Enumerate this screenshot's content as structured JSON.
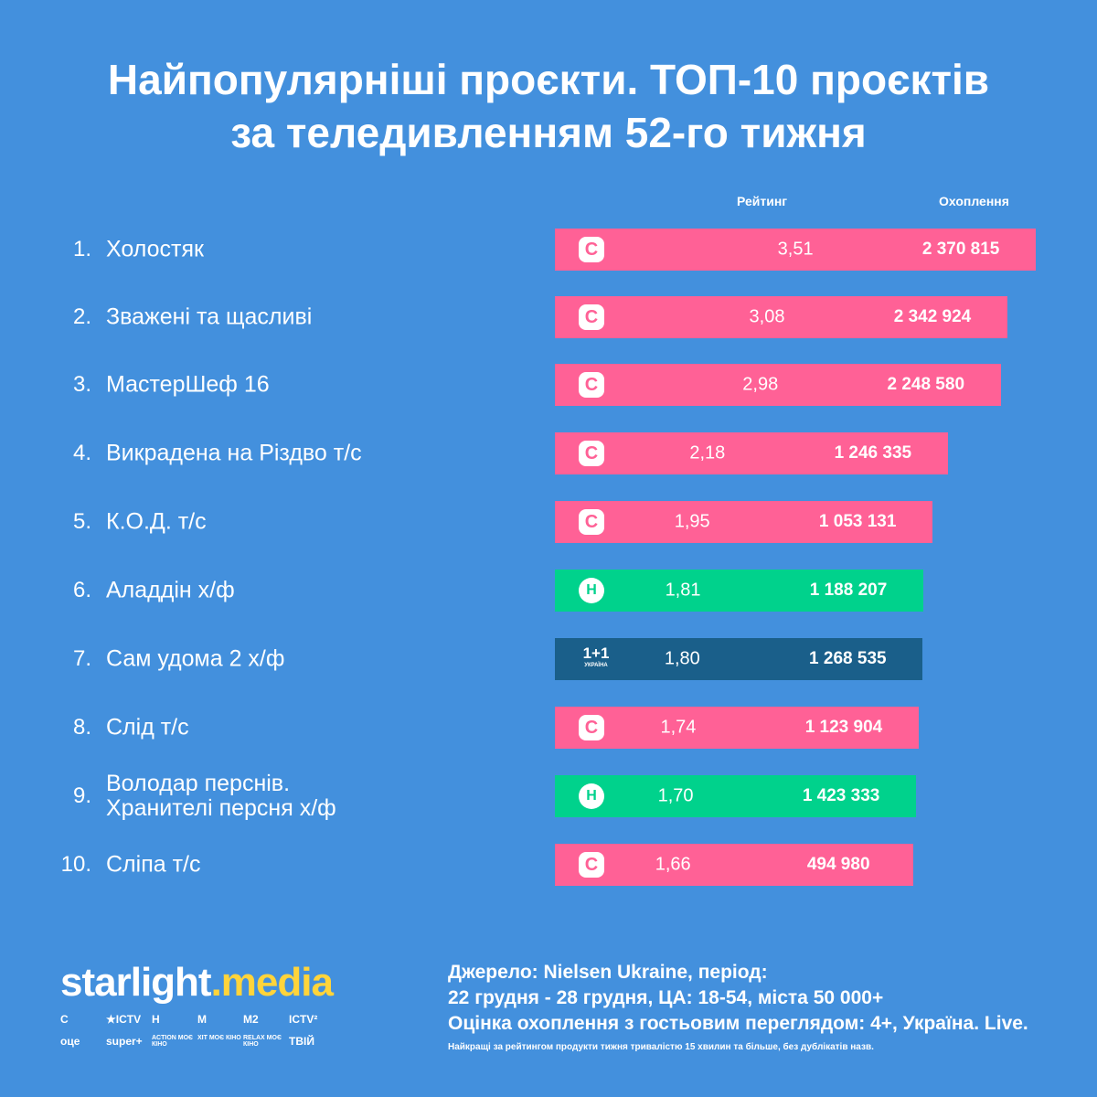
{
  "title_line1": "Найпопулярніші проєкти. ТОП-10 проєктів",
  "title_line2": "за теледивленням 52-го тижня",
  "chart_data": {
    "type": "bar",
    "title": "Найпопулярніші проєкти. ТОП-10 проєктів за теледивленням 52-го тижня",
    "columns": [
      "Рейтинг",
      "Охоплення"
    ],
    "colors": {
      "stb": "#ff6196",
      "novy": "#00d28c",
      "plus11": "#1a5f8a"
    },
    "rows": [
      {
        "rank": "1.",
        "name": "Холостяк",
        "channel": "stb",
        "logo": "С",
        "rating": 3.51,
        "rating_label": "3,51",
        "reach": "2 370 815"
      },
      {
        "rank": "2.",
        "name": "Зважені та щасливі",
        "channel": "stb",
        "logo": "С",
        "rating": 3.08,
        "rating_label": "3,08",
        "reach": "2 342 924"
      },
      {
        "rank": "3.",
        "name": "МастерШеф 16",
        "channel": "stb",
        "logo": "С",
        "rating": 2.98,
        "rating_label": "2,98",
        "reach": "2 248 580"
      },
      {
        "rank": "4.",
        "name": "Викрадена на Різдво т/с",
        "channel": "stb",
        "logo": "С",
        "rating": 2.18,
        "rating_label": "2,18",
        "reach": "1 246 335"
      },
      {
        "rank": "5.",
        "name": "К.О.Д. т/с",
        "channel": "stb",
        "logo": "С",
        "rating": 1.95,
        "rating_label": "1,95",
        "reach": "1 053 131"
      },
      {
        "rank": "6.",
        "name": "Аладдін х/ф",
        "channel": "novy",
        "logo": "Н",
        "rating": 1.81,
        "rating_label": "1,81",
        "reach": "1 188 207"
      },
      {
        "rank": "7.",
        "name": "Сам удома 2 х/ф",
        "channel": "plus11",
        "logo": "1+1",
        "logo_sub": "УКРАЇНА",
        "rating": 1.8,
        "rating_label": "1,80",
        "reach": "1 268 535"
      },
      {
        "rank": "8.",
        "name": "Слід т/с",
        "channel": "stb",
        "logo": "С",
        "rating": 1.74,
        "rating_label": "1,74",
        "reach": "1 123 904"
      },
      {
        "rank": "9.",
        "name": "Володар перснів. Хранителі персня х/ф",
        "channel": "novy",
        "logo": "Н",
        "rating": 1.7,
        "rating_label": "1,70",
        "reach": "1 423 333"
      },
      {
        "rank": "10.",
        "name": "Сліпа т/с",
        "channel": "stb",
        "logo": "С",
        "rating": 1.66,
        "rating_label": "1,66",
        "reach": "494 980"
      }
    ]
  },
  "footer": {
    "brand_a": "starlight",
    "brand_b": ".media",
    "channels": [
      "С",
      "★ICTV",
      "Н",
      "М",
      "М2",
      "ICTV²",
      "оце",
      "super+",
      "ACTION МОЄ КІНО",
      "ХІТ МОЄ КІНО",
      "RELAX МОЄ КІНО",
      "ТВІЙ"
    ],
    "source1": "Джерело: Nielsen Ukraine, період:",
    "source2": "22 грудня - 28 грудня, ЦА: 18-54, міста 50 000+",
    "source3": "Оцінка охоплення з гостьовим переглядом: 4+, Україна. Live.",
    "note": "Найкращі за рейтингом продукти тижня тривалістю 15 хвилин та більше, без дублікатів назв."
  }
}
